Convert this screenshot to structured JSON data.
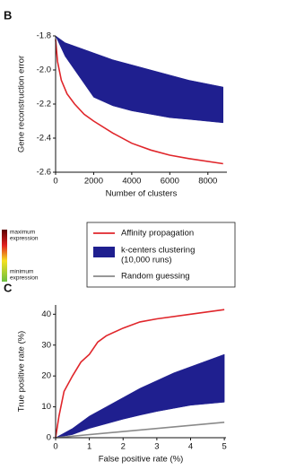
{
  "chart_data": [
    {
      "type": "line",
      "panel": "B",
      "y_label": "Gene reconstruction error",
      "x_label": "Number of clusters",
      "xlim": [
        0,
        9000
      ],
      "xticks": [
        0,
        2000,
        4000,
        6000,
        8000
      ],
      "ylim": [
        -2.6,
        -1.8
      ],
      "yticks": [
        {
          "value": -2.6,
          "label": "-2.6"
        },
        {
          "value": -2.4,
          "label": "-2.4"
        },
        {
          "value": -2.2,
          "label": "-2.2"
        },
        {
          "value": -2.0,
          "label": "-2.0"
        },
        {
          "value": -1.8,
          "label": "-1.8"
        }
      ],
      "series": [
        {
          "color": "#1f1f8f",
          "x": [
            0,
            500,
            1000,
            2000,
            3000,
            4000,
            5000,
            6000,
            7000,
            8800
          ],
          "lower": [
            -1.8,
            -1.92,
            -2.0,
            -2.16,
            -2.21,
            -2.24,
            -2.26,
            -2.28,
            -2.29,
            -2.31
          ],
          "upper": [
            -1.8,
            -1.84,
            -1.86,
            -1.9,
            -1.94,
            -1.97,
            -2.0,
            -2.03,
            -2.06,
            -2.1
          ]
        },
        {
          "color": "#e0262b",
          "x": [
            0,
            100,
            300,
            600,
            1000,
            1500,
            2000,
            3000,
            4000,
            5000,
            6000,
            7000,
            8800
          ],
          "values": [
            -1.82,
            -1.95,
            -2.06,
            -2.14,
            -2.2,
            -2.26,
            -2.3,
            -2.37,
            -2.43,
            -2.47,
            -2.5,
            -2.52,
            -2.55
          ]
        }
      ]
    },
    {
      "type": "line",
      "panel": "C",
      "y_label": "True positive rate (%)",
      "x_label": "False positive rate (%)",
      "xlim": [
        0,
        5.05
      ],
      "xticks": [
        0,
        1,
        2,
        3,
        4,
        5
      ],
      "ylim": [
        0,
        43
      ],
      "yticks": [
        0,
        10,
        20,
        30,
        40
      ],
      "series": [
        {
          "color": "#1f1f8f",
          "x": [
            0,
            0.5,
            1,
            1.5,
            2,
            2.5,
            3,
            3.5,
            4,
            4.5,
            5
          ],
          "lower": [
            0,
            1,
            3,
            4.5,
            6,
            7.3,
            8.5,
            9.5,
            10.5,
            11,
            11.5
          ],
          "upper": [
            0,
            3,
            7,
            10,
            13,
            16,
            18.5,
            21,
            23,
            25,
            27
          ]
        },
        {
          "color": "#8a8a8a",
          "x": [
            0,
            5
          ],
          "values": [
            0,
            5
          ]
        },
        {
          "color": "#e0262b",
          "x": [
            0,
            0.1,
            0.25,
            0.5,
            0.75,
            1,
            1.25,
            1.5,
            2,
            2.5,
            3,
            4,
            5
          ],
          "values": [
            0,
            7,
            15,
            20,
            24.5,
            27,
            31,
            33,
            35.5,
            37.5,
            38.5,
            40,
            41.5
          ]
        }
      ]
    }
  ],
  "legend": [
    {
      "label": [
        "Affinity propagation"
      ],
      "color": "#e0262b",
      "kind": "line"
    },
    {
      "label": [
        "k-centers clustering",
        "(10,000 runs)"
      ],
      "color": "#1f1f8f",
      "kind": "box"
    },
    {
      "label": [
        "Random guessing"
      ],
      "color": "#8a8a8a",
      "kind": "line"
    }
  ],
  "colorbar": {
    "max_label": [
      "maximum",
      "expression"
    ],
    "min_label": [
      "minimum",
      "expression"
    ]
  }
}
